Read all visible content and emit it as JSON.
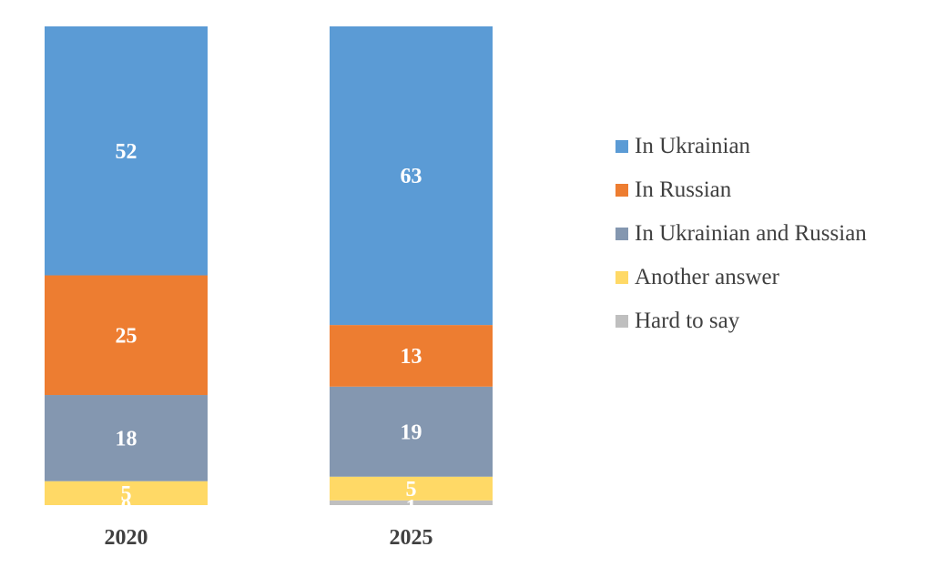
{
  "chart_data": {
    "type": "bar",
    "stacked": true,
    "categories": [
      "2020",
      "2025"
    ],
    "series": [
      {
        "name": "In Ukrainian",
        "color": "#5B9BD5",
        "values": [
          52,
          63
        ]
      },
      {
        "name": "In Russian",
        "color": "#ED7D31",
        "values": [
          25,
          13
        ]
      },
      {
        "name": "In Ukrainian and Russian",
        "color": "#8497B0",
        "values": [
          18,
          19
        ]
      },
      {
        "name": "Another answer",
        "color": "#FFD966",
        "values": [
          5,
          5
        ]
      },
      {
        "name": "Hard to say",
        "color": "#BFBFBF",
        "values": [
          0,
          1
        ]
      }
    ],
    "title": "",
    "xlabel": "",
    "ylabel": "",
    "legend_position": "right",
    "grid": false
  }
}
